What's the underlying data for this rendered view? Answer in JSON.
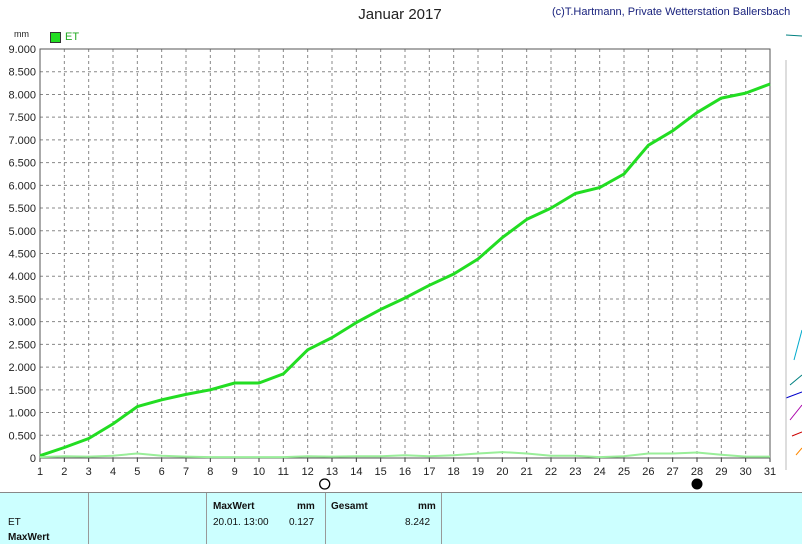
{
  "title": "Januar 2017",
  "copyright": "(c)T.Hartmann, Private Wetterstation Ballersbach",
  "unit": "mm",
  "legend": {
    "label": "ET",
    "color": "#22dd22"
  },
  "chart_data": {
    "type": "line",
    "title": "Januar 2017",
    "ylabel": "mm",
    "xlabel": "",
    "x": [
      1,
      2,
      3,
      4,
      5,
      6,
      7,
      8,
      9,
      10,
      11,
      12,
      13,
      14,
      15,
      16,
      17,
      18,
      19,
      20,
      21,
      22,
      23,
      24,
      25,
      26,
      27,
      28,
      29,
      30,
      31
    ],
    "xlim": [
      1,
      31
    ],
    "ylim": [
      0,
      9
    ],
    "yticks": [
      "0",
      "0.500",
      "1.000",
      "1.500",
      "2.000",
      "2.500",
      "3.000",
      "3.500",
      "4.000",
      "4.500",
      "5.000",
      "5.500",
      "6.000",
      "6.500",
      "7.000",
      "7.500",
      "8.000",
      "8.500",
      "9.000"
    ],
    "xticks": [
      "1",
      "2",
      "3",
      "4",
      "5",
      "6",
      "7",
      "8",
      "9",
      "10",
      "11",
      "12",
      "13",
      "14",
      "15",
      "16",
      "17",
      "18",
      "19",
      "20",
      "21",
      "22",
      "23",
      "24",
      "25",
      "26",
      "27",
      "28",
      "29",
      "30",
      "31"
    ],
    "grid": true,
    "series": [
      {
        "name": "ET",
        "color": "#22dd22",
        "values": [
          0.05,
          0.23,
          0.43,
          0.75,
          1.13,
          1.28,
          1.4,
          1.5,
          1.65,
          1.65,
          1.85,
          2.38,
          2.65,
          2.98,
          3.27,
          3.52,
          3.8,
          4.05,
          4.38,
          4.85,
          5.25,
          5.5,
          5.82,
          5.95,
          6.25,
          6.88,
          7.2,
          7.6,
          7.92,
          8.03,
          8.23
        ]
      },
      {
        "name": "",
        "color": "#99ee99",
        "values": [
          0.02,
          0.04,
          0.03,
          0.05,
          0.1,
          0.05,
          0.03,
          0.02,
          0.02,
          0.02,
          0.02,
          0.04,
          0.03,
          0.04,
          0.04,
          0.06,
          0.04,
          0.06,
          0.1,
          0.13,
          0.1,
          0.05,
          0.05,
          0.02,
          0.04,
          0.1,
          0.1,
          0.12,
          0.07,
          0.03,
          0.03
        ]
      }
    ],
    "markers": [
      {
        "x": 12.7,
        "style": "open-circle"
      },
      {
        "x": 28,
        "style": "filled-circle"
      }
    ]
  },
  "footer": {
    "row1": "ET",
    "row2": "MaxWert",
    "maxwert_header": "MaxWert",
    "maxwert_unit": "mm",
    "maxwert_time": "20.01.  13:00",
    "maxwert_value": "0.127",
    "gesamt_header": "Gesamt",
    "gesamt_unit": "mm",
    "gesamt_value": "8.242"
  }
}
